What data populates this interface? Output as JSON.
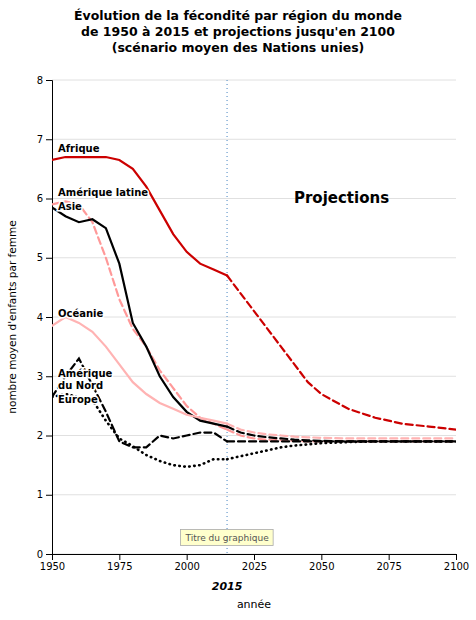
{
  "chart_data": {
    "type": "line",
    "title": "Évolution de la fécondité par région du monde\nde 1950 à 2015 et projections jusqu'en 2100\n(scénario moyen des Nations unies)",
    "x_label": "année",
    "y_label": "nombre moyen d'enfants par femme",
    "xlim": [
      1950,
      2100
    ],
    "ylim": [
      0,
      8
    ],
    "xticks": [
      1950,
      1975,
      2000,
      2025,
      2050,
      2075,
      2100
    ],
    "yticks": [
      0,
      1,
      2,
      3,
      4,
      5,
      6,
      7,
      8
    ],
    "grid": true,
    "reference_line": {
      "x": 2015,
      "label": "2015"
    },
    "projection_label": "Projections",
    "box_label": "Titre du graphique",
    "series": [
      {
        "name": "Afrique",
        "color": "#cc0000",
        "line_style": "solid",
        "x": [
          1950,
          1955,
          1960,
          1965,
          1970,
          1975,
          1980,
          1985,
          1990,
          1995,
          2000,
          2005,
          2010,
          2015
        ],
        "values": [
          6.65,
          6.7,
          6.7,
          6.7,
          6.7,
          6.65,
          6.5,
          6.2,
          5.8,
          5.4,
          5.1,
          4.9,
          4.8,
          4.7
        ],
        "projection": {
          "line_style": "dashed",
          "x": [
            2015,
            2020,
            2025,
            2030,
            2035,
            2040,
            2045,
            2050,
            2060,
            2070,
            2080,
            2090,
            2100
          ],
          "values": [
            4.7,
            4.4,
            4.1,
            3.8,
            3.5,
            3.2,
            2.9,
            2.7,
            2.45,
            2.3,
            2.2,
            2.15,
            2.1
          ]
        }
      },
      {
        "name": "Amérique latine",
        "color": "#ff9999",
        "line_style": "dashed",
        "x": [
          1950,
          1955,
          1960,
          1965,
          1970,
          1975,
          1980,
          1985,
          1990,
          1995,
          2000,
          2005,
          2010,
          2015
        ],
        "values": [
          5.9,
          5.95,
          5.9,
          5.6,
          5.0,
          4.3,
          3.8,
          3.5,
          3.1,
          2.8,
          2.5,
          2.3,
          2.2,
          2.1
        ],
        "projection": {
          "line_style": "dashed",
          "x": [
            2015,
            2020,
            2025,
            2030,
            2035,
            2040,
            2045,
            2050,
            2060,
            2070,
            2080,
            2090,
            2100
          ],
          "values": [
            2.1,
            2.0,
            1.95,
            1.93,
            1.92,
            1.91,
            1.9,
            1.9,
            1.9,
            1.9,
            1.9,
            1.9,
            1.9
          ]
        }
      },
      {
        "name": "Asie",
        "color": "#000000",
        "line_style": "solid",
        "x": [
          1950,
          1955,
          1960,
          1965,
          1970,
          1975,
          1980,
          1985,
          1990,
          1995,
          2000,
          2005,
          2010,
          2015
        ],
        "values": [
          5.85,
          5.7,
          5.6,
          5.65,
          5.5,
          4.9,
          3.9,
          3.5,
          3.0,
          2.65,
          2.4,
          2.25,
          2.2,
          2.15
        ],
        "projection": {
          "line_style": "dashed",
          "x": [
            2015,
            2020,
            2025,
            2030,
            2035,
            2040,
            2045,
            2050,
            2060,
            2070,
            2080,
            2090,
            2100
          ],
          "values": [
            2.15,
            2.05,
            2.0,
            1.97,
            1.95,
            1.93,
            1.92,
            1.91,
            1.9,
            1.9,
            1.9,
            1.9,
            1.9
          ]
        }
      },
      {
        "name": "Océanie",
        "color": "#ffb3b3",
        "line_style": "solid",
        "x": [
          1950,
          1955,
          1960,
          1965,
          1970,
          1975,
          1980,
          1985,
          1990,
          1995,
          2000,
          2005,
          2010,
          2015
        ],
        "values": [
          3.85,
          4.0,
          3.9,
          3.75,
          3.5,
          3.2,
          2.9,
          2.7,
          2.55,
          2.45,
          2.35,
          2.3,
          2.25,
          2.2
        ],
        "projection": {
          "line_style": "dashed",
          "x": [
            2015,
            2020,
            2025,
            2030,
            2035,
            2040,
            2045,
            2050,
            2060,
            2070,
            2080,
            2090,
            2100
          ],
          "values": [
            2.2,
            2.1,
            2.05,
            2.02,
            2.0,
            1.98,
            1.97,
            1.96,
            1.95,
            1.95,
            1.95,
            1.95,
            1.95
          ]
        }
      },
      {
        "name": "Amérique\ndu Nord",
        "color": "#000000",
        "line_style": "dashed",
        "x": [
          1950,
          1955,
          1960,
          1965,
          1970,
          1975,
          1980,
          1985,
          1990,
          1995,
          2000,
          2005,
          2010,
          2015
        ],
        "values": [
          2.65,
          3.0,
          3.3,
          2.85,
          2.4,
          1.9,
          1.8,
          1.8,
          2.0,
          1.95,
          2.0,
          2.05,
          2.05,
          1.9
        ],
        "projection": {
          "line_style": "dashed",
          "x": [
            2015,
            2020,
            2025,
            2030,
            2035,
            2040,
            2045,
            2050,
            2060,
            2070,
            2080,
            2090,
            2100
          ],
          "values": [
            1.9,
            1.9,
            1.9,
            1.9,
            1.9,
            1.9,
            1.9,
            1.9,
            1.9,
            1.9,
            1.9,
            1.9,
            1.9
          ]
        }
      },
      {
        "name": "Europe",
        "color": "#000000",
        "line_style": "dotted",
        "x": [
          1950,
          1955,
          1960,
          1965,
          1970,
          1975,
          1980,
          1985,
          1990,
          1995,
          2000,
          2005,
          2010,
          2015
        ],
        "values": [
          2.65,
          2.7,
          2.65,
          2.6,
          2.25,
          1.95,
          1.82,
          1.67,
          1.57,
          1.5,
          1.47,
          1.5,
          1.6,
          1.6
        ],
        "projection": {
          "line_style": "dotted",
          "x": [
            2015,
            2020,
            2025,
            2030,
            2035,
            2040,
            2045,
            2050,
            2060,
            2070,
            2080,
            2090,
            2100
          ],
          "values": [
            1.6,
            1.65,
            1.7,
            1.75,
            1.8,
            1.83,
            1.85,
            1.87,
            1.89,
            1.9,
            1.9,
            1.9,
            1.9
          ]
        }
      }
    ]
  }
}
